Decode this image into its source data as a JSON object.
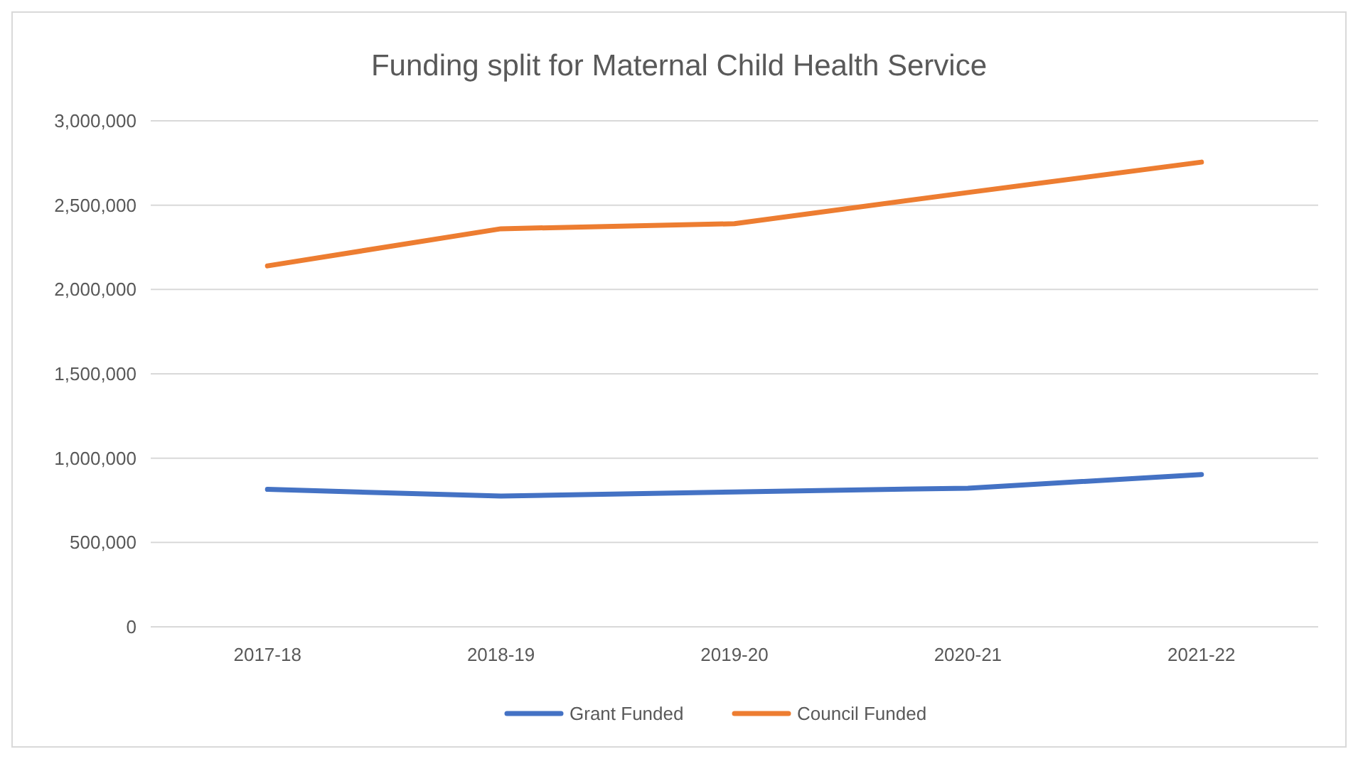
{
  "chart_data": {
    "type": "line",
    "title": "Funding split for Maternal Child Health Service",
    "categories": [
      "2017-18",
      "2018-19",
      "2019-20",
      "2020-21",
      "2021-22"
    ],
    "series": [
      {
        "name": "Grant Funded",
        "color": "#4472c4",
        "values": [
          815000,
          775000,
          800000,
          822000,
          903000
        ]
      },
      {
        "name": "Council Funded",
        "color": "#ed7d31",
        "values": [
          2140000,
          2360000,
          2390000,
          2575000,
          2755000
        ]
      }
    ],
    "ylim": [
      0,
      3000000
    ],
    "yticks": [
      {
        "value": 0,
        "label": "0"
      },
      {
        "value": 500000,
        "label": "500,000"
      },
      {
        "value": 1000000,
        "label": "1,000,000"
      },
      {
        "value": 1500000,
        "label": "1,500,000"
      },
      {
        "value": 2000000,
        "label": "2,000,000"
      },
      {
        "value": 2500000,
        "label": "2,500,000"
      },
      {
        "value": 3000000,
        "label": "3,000,000"
      }
    ],
    "grid": "y",
    "legend": "bottom",
    "marker": "none",
    "line_style": "solid"
  }
}
